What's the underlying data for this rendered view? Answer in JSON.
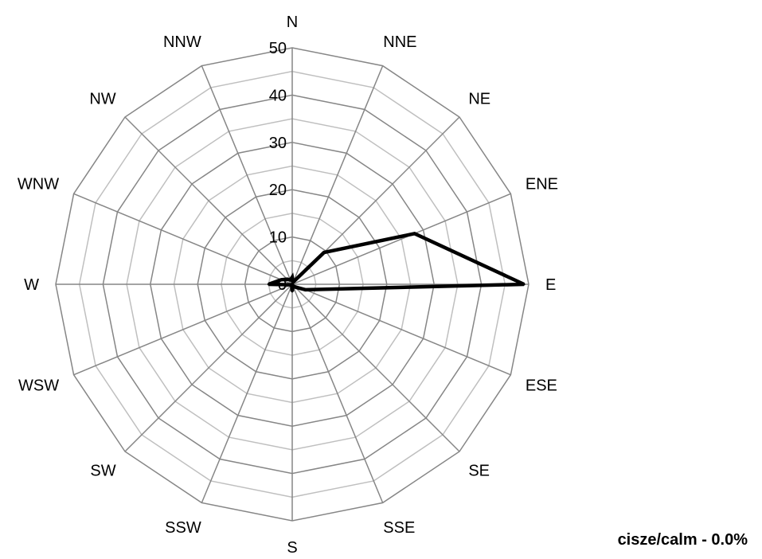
{
  "chart_data": {
    "type": "radar",
    "directions": [
      "N",
      "NNE",
      "NE",
      "ENE",
      "E",
      "ESE",
      "SE",
      "SSE",
      "S",
      "SSW",
      "SW",
      "WSW",
      "W",
      "WNW",
      "NW",
      "NNW"
    ],
    "series": [
      {
        "values": [
          1.5,
          0.5,
          9.5,
          28,
          49,
          3,
          0.8,
          0.3,
          1.5,
          0.3,
          0.3,
          0.3,
          5,
          2.5,
          1.5,
          1
        ]
      }
    ],
    "ylim": [
      0,
      50
    ],
    "ticks": [
      "0",
      "10",
      "20",
      "30",
      "40",
      "50"
    ],
    "tick_values": [
      0,
      10,
      20,
      30,
      40,
      50
    ],
    "minor_step": 5,
    "grid": true,
    "colors": {
      "series": "#000000",
      "major_grid": "#868686",
      "minor_grid": "#bfbfbf"
    }
  },
  "footer": {
    "calm_label": "cisze/calm - 0.0%"
  }
}
